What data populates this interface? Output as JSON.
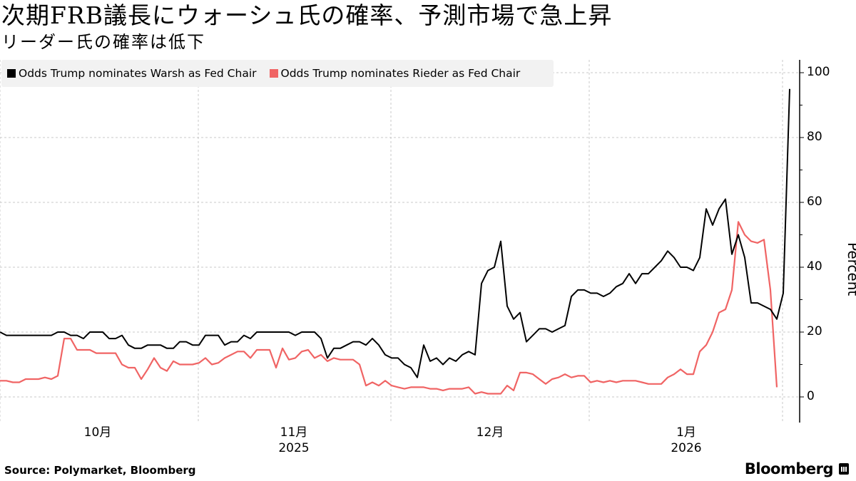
{
  "header": {
    "title": "次期FRB議長にウォーシュ氏の確率、予測市場で急上昇",
    "subtitle": "リーダー氏の確率は低下"
  },
  "legend": {
    "items": [
      {
        "label": "Odds Trump nominates Warsh as Fed Chair",
        "color": "#000000"
      },
      {
        "label": "Odds Trump nominates Rieder as Fed Chair",
        "color": "#f06464"
      }
    ]
  },
  "axes": {
    "y_ticks": [
      "100",
      "80",
      "60",
      "40",
      "20",
      "0"
    ],
    "y_label": "Percent",
    "x_ticks": [
      {
        "label": "10月",
        "year": ""
      },
      {
        "label": "11月",
        "year": "2025"
      },
      {
        "label": "12月",
        "year": ""
      },
      {
        "label": "1月",
        "year": "2026"
      }
    ]
  },
  "footer": {
    "source": "Source:  Polymarket, Bloomberg",
    "brand": "Bloomberg"
  },
  "chart_data": {
    "type": "line",
    "title": "次期FRB議長にウォーシュ氏の確率、予測市場で急上昇",
    "subtitle": "リーダー氏の確率は低下",
    "xlabel": "",
    "ylabel": "Percent",
    "ylim": [
      -8,
      104
    ],
    "y_ticks": [
      0,
      20,
      40,
      60,
      80,
      100
    ],
    "x_tick_labels": [
      "10月",
      "11月\n2025",
      "12月",
      "1月\n2026"
    ],
    "grid": true,
    "legend_position": "top-left",
    "x_start": "2025-09-30",
    "x_step_days": 1,
    "series": [
      {
        "name": "Odds Trump nominates Warsh as Fed Chair",
        "color": "#000000",
        "values": [
          20,
          19,
          19,
          19,
          19,
          19,
          19,
          19,
          19,
          20,
          20,
          19,
          19,
          18,
          20,
          20,
          20,
          18,
          18,
          19,
          16,
          15,
          15,
          16,
          16,
          16,
          15,
          15,
          17,
          17,
          16,
          16,
          19,
          19,
          19,
          16,
          17,
          17,
          19,
          18,
          20,
          20,
          20,
          20,
          20,
          20,
          19,
          20,
          20,
          20,
          18,
          12,
          15,
          15,
          16,
          17,
          17,
          16,
          18,
          16,
          13,
          12,
          12,
          10,
          9,
          6,
          16,
          11,
          12,
          10,
          12,
          11,
          13,
          14,
          13,
          35,
          39,
          40,
          48,
          28,
          24,
          26,
          17,
          19,
          21,
          21,
          20,
          21,
          22,
          31,
          33,
          33,
          32,
          32,
          31,
          32,
          34,
          35,
          38,
          35,
          38,
          38,
          40,
          42,
          45,
          43,
          40,
          40,
          39,
          43,
          58,
          53,
          58,
          61,
          44,
          50,
          43,
          29,
          29,
          28,
          27,
          24,
          32,
          95
        ]
      },
      {
        "name": "Odds Trump nominates Rieder as Fed Chair",
        "color": "#f06464",
        "values": [
          5,
          5,
          4.5,
          4.5,
          5.5,
          5.5,
          5.5,
          6,
          5.5,
          6.5,
          18,
          18,
          14.5,
          14.5,
          14.5,
          13.5,
          13.5,
          13.5,
          13.5,
          10,
          9,
          9,
          5.5,
          8.5,
          12,
          9,
          8,
          11,
          10,
          10,
          10,
          10.5,
          12,
          10,
          10.5,
          12,
          13,
          14,
          14,
          12,
          14.5,
          14.5,
          14.5,
          9,
          15,
          11.5,
          12,
          14,
          14.5,
          12,
          13,
          11,
          12,
          11.5,
          11.5,
          11.5,
          10,
          3.5,
          4.5,
          3.5,
          5,
          3.5,
          3,
          2.5,
          3,
          3,
          3,
          2.5,
          2.5,
          2,
          2.5,
          2.5,
          2.5,
          3,
          1,
          1.5,
          1,
          1,
          1,
          3.5,
          2,
          7.5,
          7.5,
          7,
          5.5,
          4,
          5.5,
          6,
          7,
          6,
          6.5,
          6.5,
          4.5,
          5,
          4.5,
          5,
          4.5,
          5,
          5,
          5,
          4.5,
          4,
          4,
          4,
          6,
          7,
          8.5,
          7,
          7,
          14,
          16,
          20,
          26,
          27,
          33,
          54,
          50,
          48,
          47.5,
          48.5,
          33,
          3
        ]
      }
    ]
  }
}
